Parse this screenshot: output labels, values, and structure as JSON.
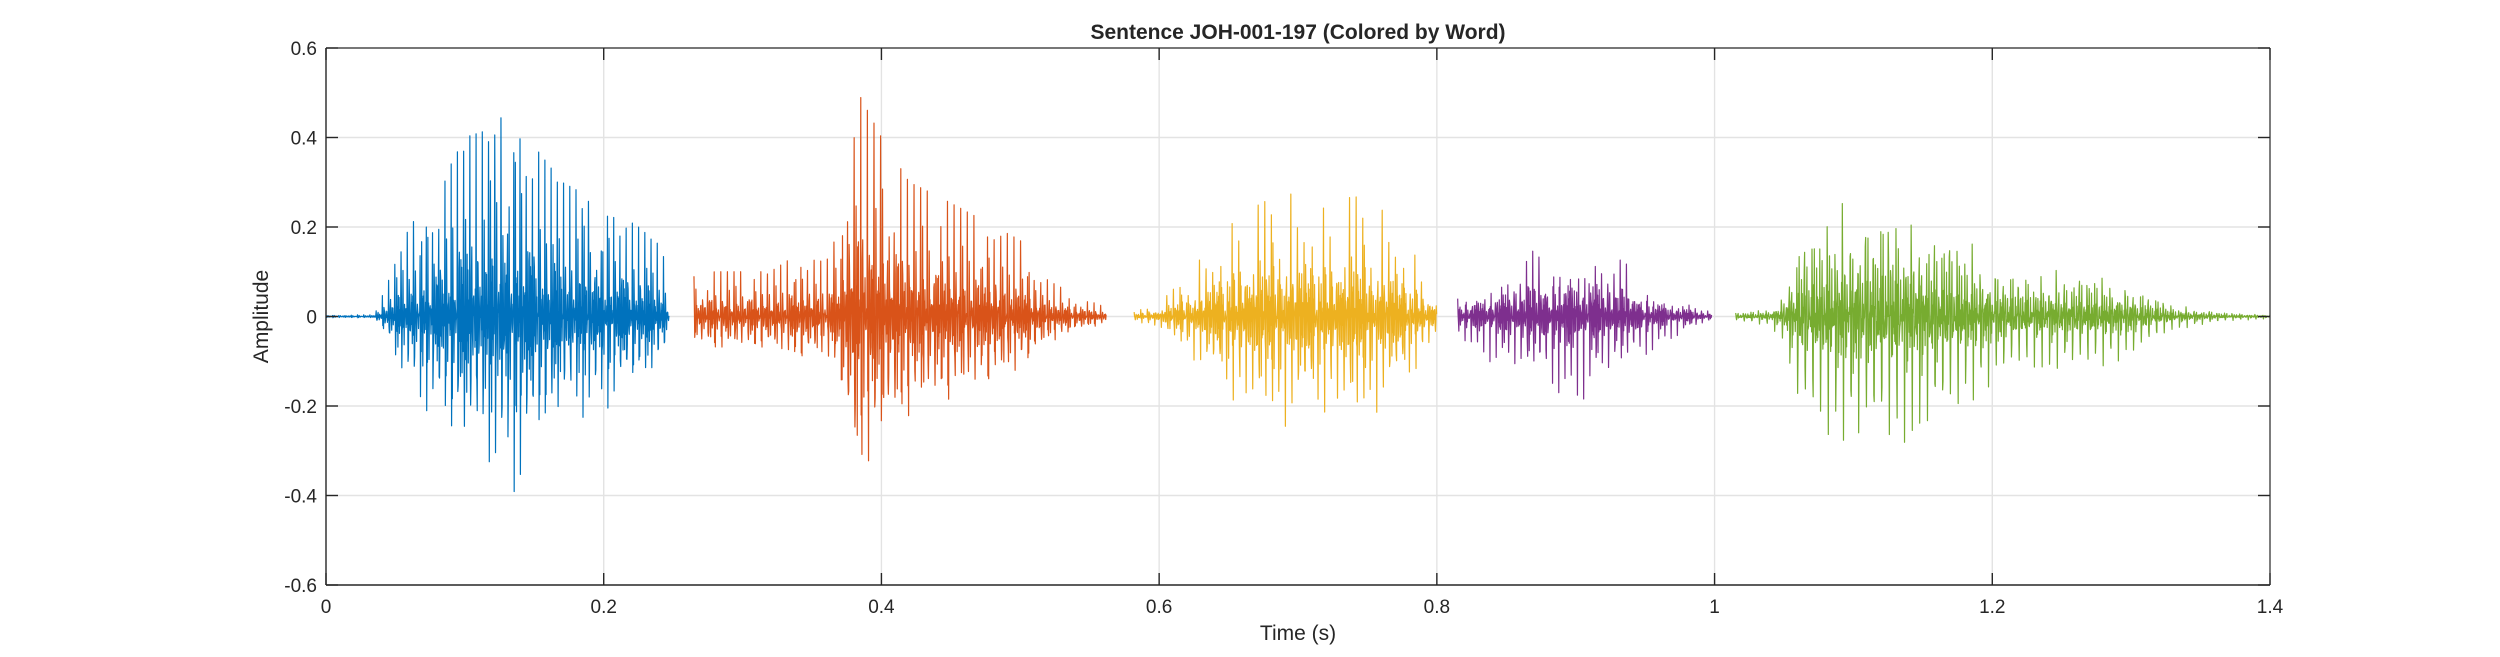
{
  "chart_data": {
    "type": "line",
    "title": "Sentence JOH-001-197 (Colored by Word)",
    "xlabel": "Time (s)",
    "ylabel": "Amplitude",
    "xlim": [
      0,
      1.4
    ],
    "ylim": [
      -0.6,
      0.6
    ],
    "xticks": [
      0,
      0.2,
      0.4,
      0.6,
      0.8,
      1,
      1.2,
      1.4
    ],
    "xtick_labels": [
      "0",
      "0.2",
      "0.4",
      "0.6",
      "0.8",
      "1",
      "1.2",
      "1.4"
    ],
    "yticks": [
      -0.6,
      -0.4,
      -0.2,
      0,
      0.2,
      0.4,
      0.6
    ],
    "ytick_labels": [
      "-0.6",
      "-0.4",
      "-0.2",
      "0",
      "0.2",
      "0.4",
      "0.6"
    ],
    "grid": true,
    "series": [
      {
        "color": "#0072BD",
        "start": 0.0,
        "end": 0.247,
        "pitch_period": 0.0045,
        "envelope": [
          [
            0.0,
            0.003
          ],
          [
            0.035,
            0.004
          ],
          [
            0.045,
            0.08
          ],
          [
            0.06,
            0.2
          ],
          [
            0.08,
            0.28
          ],
          [
            0.1,
            0.4
          ],
          [
            0.12,
            0.42
          ],
          [
            0.135,
            0.48
          ],
          [
            0.15,
            0.38
          ],
          [
            0.17,
            0.3
          ],
          [
            0.2,
            0.25
          ],
          [
            0.225,
            0.2
          ],
          [
            0.24,
            0.16
          ],
          [
            0.247,
            0.1
          ]
        ]
      },
      {
        "color": "#D95319",
        "start": 0.265,
        "end": 0.562,
        "pitch_period": 0.0048,
        "envelope": [
          [
            0.265,
            0.09
          ],
          [
            0.28,
            0.1
          ],
          [
            0.3,
            0.1
          ],
          [
            0.32,
            0.1
          ],
          [
            0.34,
            0.14
          ],
          [
            0.36,
            0.12
          ],
          [
            0.37,
            0.2
          ],
          [
            0.38,
            0.52
          ],
          [
            0.4,
            0.4
          ],
          [
            0.42,
            0.3
          ],
          [
            0.44,
            0.27
          ],
          [
            0.47,
            0.22
          ],
          [
            0.5,
            0.17
          ],
          [
            0.52,
            0.08
          ],
          [
            0.545,
            0.04
          ],
          [
            0.562,
            0.02
          ]
        ]
      },
      {
        "color": "#EDB120",
        "start": 0.582,
        "end": 0.8,
        "pitch_period": 0.0047,
        "envelope": [
          [
            0.582,
            0.01
          ],
          [
            0.6,
            0.03
          ],
          [
            0.62,
            0.09
          ],
          [
            0.64,
            0.17
          ],
          [
            0.66,
            0.23
          ],
          [
            0.69,
            0.28
          ],
          [
            0.72,
            0.24
          ],
          [
            0.74,
            0.27
          ],
          [
            0.76,
            0.24
          ],
          [
            0.78,
            0.16
          ],
          [
            0.8,
            0.05
          ]
        ]
      },
      {
        "color": "#7E2F8E",
        "start": 0.815,
        "end": 0.998,
        "pitch_period": 0.0045,
        "envelope": [
          [
            0.815,
            0.04
          ],
          [
            0.83,
            0.09
          ],
          [
            0.86,
            0.13
          ],
          [
            0.9,
            0.2
          ],
          [
            0.92,
            0.15
          ],
          [
            0.95,
            0.09
          ],
          [
            0.97,
            0.05
          ],
          [
            0.998,
            0.01
          ]
        ]
      },
      {
        "color": "#77AC30",
        "start": 1.015,
        "end": 1.4,
        "pitch_period": 0.0055,
        "envelope": [
          [
            1.015,
            0.01
          ],
          [
            1.04,
            0.02
          ],
          [
            1.05,
            0.06
          ],
          [
            1.06,
            0.22
          ],
          [
            1.08,
            0.27
          ],
          [
            1.1,
            0.28
          ],
          [
            1.13,
            0.29
          ],
          [
            1.15,
            0.27
          ],
          [
            1.17,
            0.23
          ],
          [
            1.2,
            0.15
          ],
          [
            1.22,
            0.12
          ],
          [
            1.27,
            0.12
          ],
          [
            1.3,
            0.09
          ],
          [
            1.33,
            0.03
          ],
          [
            1.37,
            0.01
          ],
          [
            1.4,
            0.005
          ]
        ]
      }
    ]
  }
}
